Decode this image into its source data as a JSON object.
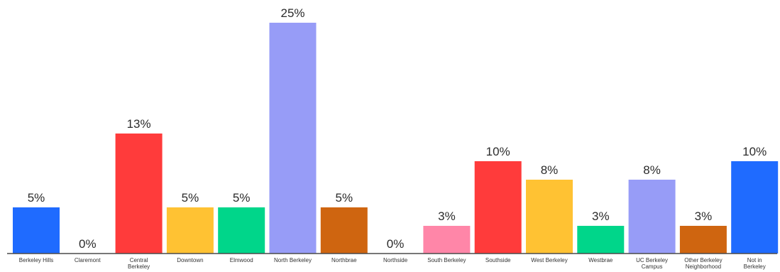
{
  "chart_data": {
    "type": "bar",
    "title": "",
    "xlabel": "",
    "ylabel": "",
    "ylim": [
      0,
      25
    ],
    "grid": false,
    "categories": [
      "Berkeley Hills",
      "Claremont",
      "Central Berkeley",
      "Downtown",
      "Elmwood",
      "North Berkeley",
      "Northbrae",
      "Northside",
      "South Berkeley",
      "Southside",
      "West Berkeley",
      "Westbrae",
      "UC Berkeley Campus",
      "Other Berkeley Neighborhood",
      "Not in Berkeley"
    ],
    "values": [
      5,
      0,
      13,
      5,
      5,
      25,
      5,
      0,
      3,
      10,
      8,
      3,
      8,
      3,
      10
    ],
    "value_labels": [
      "5%",
      "0%",
      "13%",
      "5%",
      "5%",
      "25%",
      "5%",
      "0%",
      "3%",
      "10%",
      "8%",
      "3%",
      "8%",
      "3%",
      "10%"
    ],
    "colors": [
      "#1f6bff",
      "#cccccc",
      "#ff3b3b",
      "#ffc233",
      "#00d68a",
      "#979cf7",
      "#cf6510",
      "#cccccc",
      "#ff86a8",
      "#ff3b3b",
      "#ffc233",
      "#00d68a",
      "#979cf7",
      "#cf6510",
      "#1f6bff"
    ]
  }
}
